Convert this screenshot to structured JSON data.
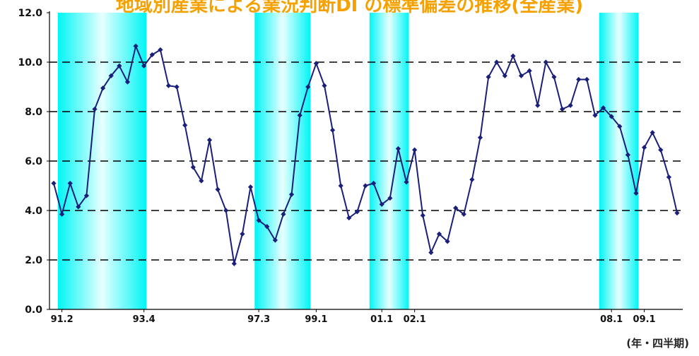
{
  "colors": {
    "title": "#f5a200",
    "series": "#1a1f7a",
    "recession_band_edge": "#00f5f5",
    "recession_band_center": "#e8ffff",
    "gridline": "#000000",
    "text": "#111111"
  },
  "chart_data": {
    "type": "line",
    "title": "地域別産業による業況判断DI の標準偏差の推移(全産業)",
    "unit_label": "(年・四半期)",
    "xlabel": "",
    "ylabel": "",
    "ylim": [
      0,
      12
    ],
    "yticks": [
      "0.0",
      "2.0",
      "4.0",
      "6.0",
      "8.0",
      "10.0",
      "12.0"
    ],
    "grid": "dashed horizontal at 2.0, 4.0, 6.0, 8.0, 10.0",
    "x_tick_labels": [
      {
        "label": "91.2",
        "index": 1
      },
      {
        "label": "93.4",
        "index": 11
      },
      {
        "label": "97.3",
        "index": 25
      },
      {
        "label": "99.1",
        "index": 32
      },
      {
        "label": "01.1",
        "index": 40
      },
      {
        "label": "02.1",
        "index": 44
      },
      {
        "label": "08.1",
        "index": 68
      },
      {
        "label": "09.1",
        "index": 72
      }
    ],
    "shaded_periods": [
      {
        "from": 0.5,
        "to": 11.3
      },
      {
        "from": 24.5,
        "to": 31.3
      },
      {
        "from": 38.5,
        "to": 43.3
      },
      {
        "from": 66.5,
        "to": 71.3
      }
    ],
    "series": [
      {
        "values": [
          5.1,
          3.85,
          5.1,
          4.15,
          4.6,
          8.1,
          8.95,
          9.45,
          9.85,
          9.2,
          10.65,
          9.85,
          10.3,
          10.5,
          9.05,
          9.0,
          7.45,
          5.75,
          5.2,
          6.85,
          4.85,
          4.0,
          1.85,
          3.05,
          4.95,
          3.6,
          3.35,
          2.8,
          3.85,
          4.65,
          7.85,
          9.0,
          9.95,
          9.05,
          7.25,
          5.0,
          3.7,
          3.95,
          5.0,
          5.1,
          4.25,
          4.5,
          6.5,
          5.15,
          6.45,
          3.8,
          2.3,
          3.05,
          2.75,
          4.1,
          3.85,
          5.25,
          6.95,
          9.4,
          10.0,
          9.45,
          10.25,
          9.45,
          9.65,
          8.25,
          10.0,
          9.4,
          8.1,
          8.25,
          9.3,
          9.3,
          7.85,
          8.15,
          7.8,
          7.4,
          6.25,
          4.7,
          6.55,
          7.15,
          6.45,
          5.35,
          3.9
        ]
      }
    ]
  }
}
